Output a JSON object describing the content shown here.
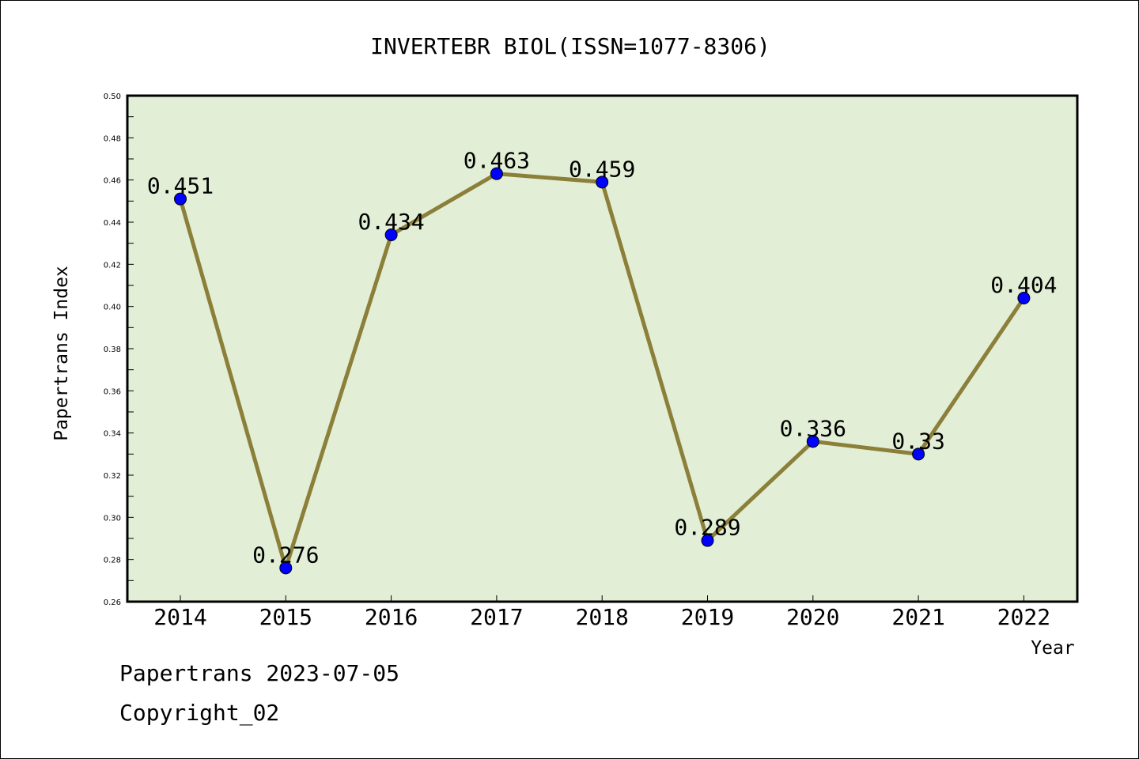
{
  "chart_data": {
    "type": "line",
    "title": "INVERTEBR BIOL(ISSN=1077-8306)",
    "xlabel": "Year",
    "ylabel": "Papertrans Index",
    "categories": [
      "2014",
      "2015",
      "2016",
      "2017",
      "2018",
      "2019",
      "2020",
      "2021",
      "2022"
    ],
    "series": [
      {
        "values": [
          0.451,
          0.276,
          0.434,
          0.463,
          0.459,
          0.289,
          0.336,
          0.33,
          0.404
        ],
        "labels": [
          "0.451",
          "0.276",
          "0.434",
          "0.463",
          "0.459",
          "0.289",
          "0.336",
          "0.33",
          "0.404"
        ]
      }
    ],
    "ylim": [
      0.26,
      0.5
    ],
    "yticks": [
      "0.26",
      "0.28",
      "0.30",
      "0.32",
      "0.34",
      "0.36",
      "0.38",
      "0.40",
      "0.42",
      "0.44",
      "0.46",
      "0.48",
      "0.50"
    ],
    "grid": false,
    "colors": {
      "plot_background": "#e2efd6",
      "line": "#8b7f3a",
      "marker": "#0000ff"
    }
  },
  "footer": {
    "date_line": "Papertrans 2023-07-05",
    "copyright": "Copyright_02"
  }
}
